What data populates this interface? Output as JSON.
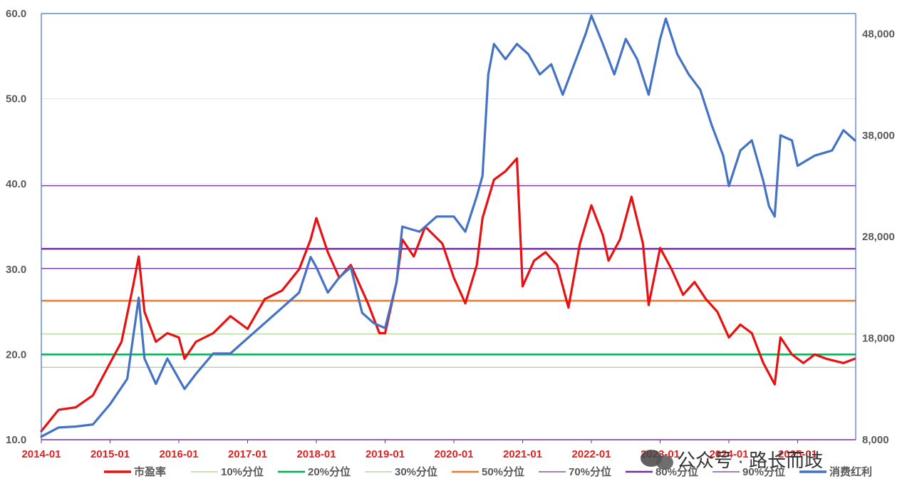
{
  "chart_data": {
    "type": "line",
    "x_ticks": [
      "2014-01",
      "2015-01",
      "2016-01",
      "2017-01",
      "2018-01",
      "2019-01",
      "2020-01",
      "2021-01",
      "2022-01",
      "2023-01",
      "2024-01",
      "2025-01"
    ],
    "y_left": {
      "ticks": [
        "10.0",
        "20.0",
        "30.0",
        "40.0",
        "50.0",
        "60.0"
      ],
      "range": [
        10,
        60
      ]
    },
    "y_right": {
      "ticks": [
        "8,000",
        "18,000",
        "28,000",
        "38,000",
        "48,000"
      ],
      "range": [
        8000,
        50000
      ]
    },
    "grid": "horizontal",
    "legend_position": "bottom",
    "series": [
      {
        "name": "市盈率",
        "axis": "left",
        "color": "#e81010",
        "points": [
          [
            "2014-01",
            11.0
          ],
          [
            "2014-04",
            13.5
          ],
          [
            "2014-07",
            13.8
          ],
          [
            "2014-10",
            15.2
          ],
          [
            "2015-01",
            19.0
          ],
          [
            "2015-03",
            21.5
          ],
          [
            "2015-05",
            28.0
          ],
          [
            "2015-06",
            31.5
          ],
          [
            "2015-07",
            25.0
          ],
          [
            "2015-09",
            21.5
          ],
          [
            "2015-11",
            22.5
          ],
          [
            "2016-01",
            22.0
          ],
          [
            "2016-02",
            19.5
          ],
          [
            "2016-04",
            21.5
          ],
          [
            "2016-07",
            22.5
          ],
          [
            "2016-10",
            24.5
          ],
          [
            "2017-01",
            23.0
          ],
          [
            "2017-04",
            26.5
          ],
          [
            "2017-07",
            27.5
          ],
          [
            "2017-10",
            30.0
          ],
          [
            "2017-12",
            33.5
          ],
          [
            "2018-01",
            36.0
          ],
          [
            "2018-03",
            32.0
          ],
          [
            "2018-05",
            29.0
          ],
          [
            "2018-07",
            30.5
          ],
          [
            "2018-10",
            26.0
          ],
          [
            "2018-12",
            22.5
          ],
          [
            "2019-01",
            22.5
          ],
          [
            "2019-03",
            28.5
          ],
          [
            "2019-04",
            33.5
          ],
          [
            "2019-06",
            31.5
          ],
          [
            "2019-08",
            35.0
          ],
          [
            "2019-11",
            33.0
          ],
          [
            "2020-01",
            29.0
          ],
          [
            "2020-03",
            26.0
          ],
          [
            "2020-05",
            30.5
          ],
          [
            "2020-06",
            36.0
          ],
          [
            "2020-08",
            40.5
          ],
          [
            "2020-10",
            41.5
          ],
          [
            "2020-12",
            43.0
          ],
          [
            "2021-01",
            28.0
          ],
          [
            "2021-03",
            31.0
          ],
          [
            "2021-05",
            32.0
          ],
          [
            "2021-07",
            30.5
          ],
          [
            "2021-09",
            25.5
          ],
          [
            "2021-11",
            33.0
          ],
          [
            "2022-01",
            37.5
          ],
          [
            "2022-03",
            34.0
          ],
          [
            "2022-04",
            31.0
          ],
          [
            "2022-06",
            33.5
          ],
          [
            "2022-08",
            38.5
          ],
          [
            "2022-10",
            33.0
          ],
          [
            "2022-11",
            25.8
          ],
          [
            "2023-01",
            32.5
          ],
          [
            "2023-03",
            30.0
          ],
          [
            "2023-05",
            27.0
          ],
          [
            "2023-07",
            28.5
          ],
          [
            "2023-09",
            26.5
          ],
          [
            "2023-11",
            25.0
          ],
          [
            "2024-01",
            22.0
          ],
          [
            "2024-03",
            23.5
          ],
          [
            "2024-05",
            22.5
          ],
          [
            "2024-07",
            19.0
          ],
          [
            "2024-09",
            16.5
          ],
          [
            "2024-10",
            22.0
          ],
          [
            "2024-12",
            20.0
          ],
          [
            "2025-02",
            19.0
          ],
          [
            "2025-04",
            20.0
          ],
          [
            "2025-06",
            19.5
          ],
          [
            "2025-09",
            19.0
          ],
          [
            "2025-11",
            19.5
          ]
        ]
      },
      {
        "name": "消费红利",
        "axis": "right",
        "color": "#4472c4",
        "points": [
          [
            "2014-01",
            8300
          ],
          [
            "2014-04",
            9200
          ],
          [
            "2014-07",
            9300
          ],
          [
            "2014-10",
            9500
          ],
          [
            "2015-01",
            11500
          ],
          [
            "2015-04",
            14000
          ],
          [
            "2015-06",
            22000
          ],
          [
            "2015-07",
            16000
          ],
          [
            "2015-09",
            13500
          ],
          [
            "2015-11",
            16000
          ],
          [
            "2016-01",
            14000
          ],
          [
            "2016-02",
            13000
          ],
          [
            "2016-04",
            14500
          ],
          [
            "2016-07",
            16500
          ],
          [
            "2016-10",
            16500
          ],
          [
            "2017-01",
            18000
          ],
          [
            "2017-04",
            19500
          ],
          [
            "2017-07",
            21000
          ],
          [
            "2017-10",
            22500
          ],
          [
            "2017-12",
            26000
          ],
          [
            "2018-01",
            25000
          ],
          [
            "2018-03",
            22500
          ],
          [
            "2018-05",
            24000
          ],
          [
            "2018-07",
            25000
          ],
          [
            "2018-09",
            20500
          ],
          [
            "2018-11",
            19500
          ],
          [
            "2019-01",
            19000
          ],
          [
            "2019-03",
            23500
          ],
          [
            "2019-04",
            29000
          ],
          [
            "2019-07",
            28500
          ],
          [
            "2019-10",
            30000
          ],
          [
            "2020-01",
            30000
          ],
          [
            "2020-03",
            28500
          ],
          [
            "2020-05",
            32000
          ],
          [
            "2020-06",
            34000
          ],
          [
            "2020-07",
            44000
          ],
          [
            "2020-08",
            47000
          ],
          [
            "2020-10",
            45500
          ],
          [
            "2020-12",
            47000
          ],
          [
            "2021-02",
            46000
          ],
          [
            "2021-04",
            44000
          ],
          [
            "2021-06",
            45000
          ],
          [
            "2021-08",
            42000
          ],
          [
            "2021-10",
            45000
          ],
          [
            "2021-12",
            48000
          ],
          [
            "2022-01",
            49800
          ],
          [
            "2022-03",
            47000
          ],
          [
            "2022-05",
            44000
          ],
          [
            "2022-07",
            47500
          ],
          [
            "2022-09",
            45500
          ],
          [
            "2022-11",
            42000
          ],
          [
            "2023-01",
            47500
          ],
          [
            "2023-02",
            49500
          ],
          [
            "2023-04",
            46000
          ],
          [
            "2023-06",
            44000
          ],
          [
            "2023-08",
            42500
          ],
          [
            "2023-10",
            39000
          ],
          [
            "2023-12",
            36000
          ],
          [
            "2024-01",
            33000
          ],
          [
            "2024-03",
            36500
          ],
          [
            "2024-05",
            37500
          ],
          [
            "2024-07",
            33500
          ],
          [
            "2024-08",
            31000
          ],
          [
            "2024-09",
            30000
          ],
          [
            "2024-10",
            38000
          ],
          [
            "2024-12",
            37500
          ],
          [
            "2025-01",
            35000
          ],
          [
            "2025-04",
            36000
          ],
          [
            "2025-07",
            36500
          ],
          [
            "2025-09",
            38500
          ],
          [
            "2025-11",
            37500
          ]
        ]
      }
    ],
    "reference_lines": [
      {
        "name": "10%分位",
        "value": 18.5,
        "color": "#a9d18e",
        "width": 1.2
      },
      {
        "name": "20%分位",
        "value": 20.0,
        "color": "#00b050",
        "width": 2.5
      },
      {
        "name": "30%分位",
        "value": 22.4,
        "color": "#a9d18e",
        "width": 1.2
      },
      {
        "name": "50%分位",
        "value": 26.3,
        "color": "#ed7d31",
        "width": 2.5
      },
      {
        "name": "70%分位",
        "value": 30.1,
        "color": "#7030a0",
        "width": 1.2
      },
      {
        "name": "80%分位",
        "value": 32.4,
        "color": "#7030a0",
        "width": 2.5
      },
      {
        "name": "90%分位",
        "value": 39.8,
        "color": "#7030a0",
        "width": 1.2
      }
    ],
    "watermark": "公众号 · 路长而歧"
  }
}
